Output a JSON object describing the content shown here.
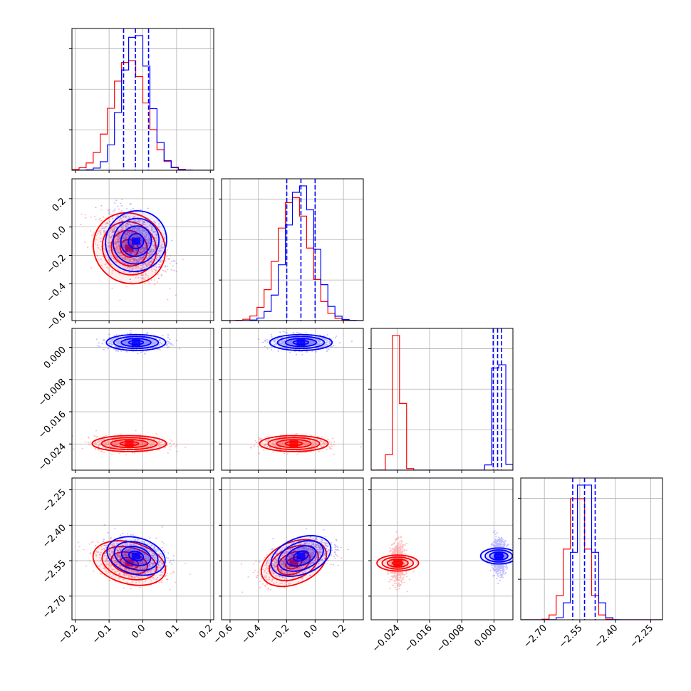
{
  "chart_data": {
    "type": "corner",
    "colors": {
      "blue": "#0000ff",
      "red": "#ff0000"
    },
    "series": [
      {
        "color": "blue",
        "mean": [
          -0.02,
          -0.1,
          0.0012,
          -2.53
        ],
        "sd": [
          0.04,
          0.1,
          0.0009,
          0.035
        ],
        "corr": {
          "1-0": -0.4,
          "3-0": -0.3,
          "3-1": 0.5,
          "3-2": 0.0
        }
      },
      {
        "color": "red",
        "mean": [
          -0.04,
          -0.15,
          -0.0239,
          -2.56
        ],
        "sd": [
          0.05,
          0.11,
          0.0009,
          0.04
        ],
        "corr": {
          "1-0": -0.45,
          "3-0": -0.35,
          "3-1": 0.55,
          "3-2": 0.0
        }
      }
    ],
    "quantiles": [
      [
        -0.057,
        -0.022,
        0.017
      ],
      [
        -0.2,
        -0.1,
        0.0
      ],
      [
        -0.0002,
        0.0009,
        0.0019
      ],
      [
        -2.58,
        -2.53,
        -2.485
      ]
    ],
    "ranges": [
      [
        -0.21,
        0.21
      ],
      [
        -0.66,
        0.34
      ],
      [
        -0.0305,
        0.0047
      ],
      [
        -2.8,
        -2.2
      ]
    ],
    "ticks": [
      [
        "−0.2",
        "−0.1",
        "0.0",
        "0.1",
        "0.2"
      ],
      [
        "−0.6",
        "−0.4",
        "−0.2",
        "0.0",
        "0.2"
      ],
      [
        "−0.024",
        "−0.016",
        "−0.008",
        "0.000"
      ],
      [
        "−2.70",
        "−2.55",
        "−2.40",
        "−2.25"
      ]
    ],
    "tick_values": [
      [
        -0.2,
        -0.1,
        0.0,
        0.1,
        0.2
      ],
      [
        -0.6,
        -0.4,
        -0.2,
        0.0,
        0.2
      ],
      [
        -0.024,
        -0.016,
        -0.008,
        0.0
      ],
      [
        -2.7,
        -2.55,
        -2.4,
        -2.25
      ]
    ],
    "y_ticks_row": [
      null,
      [
        "0.2",
        "0.0",
        "−0.2",
        "−0.4",
        "−0.6"
      ],
      [
        "0.000",
        "−0.008",
        "−0.016",
        "−0.024"
      ],
      [
        "−2.25",
        "−2.40",
        "−2.55",
        "−2.70"
      ]
    ],
    "y_tick_values_row": [
      null,
      [
        0.2,
        0.0,
        -0.2,
        -0.4,
        -0.6
      ],
      [
        0.0,
        -0.008,
        -0.016,
        -0.024
      ],
      [
        -2.25,
        -2.4,
        -2.55,
        -2.7
      ]
    ],
    "grid": true,
    "axis_labels": []
  }
}
